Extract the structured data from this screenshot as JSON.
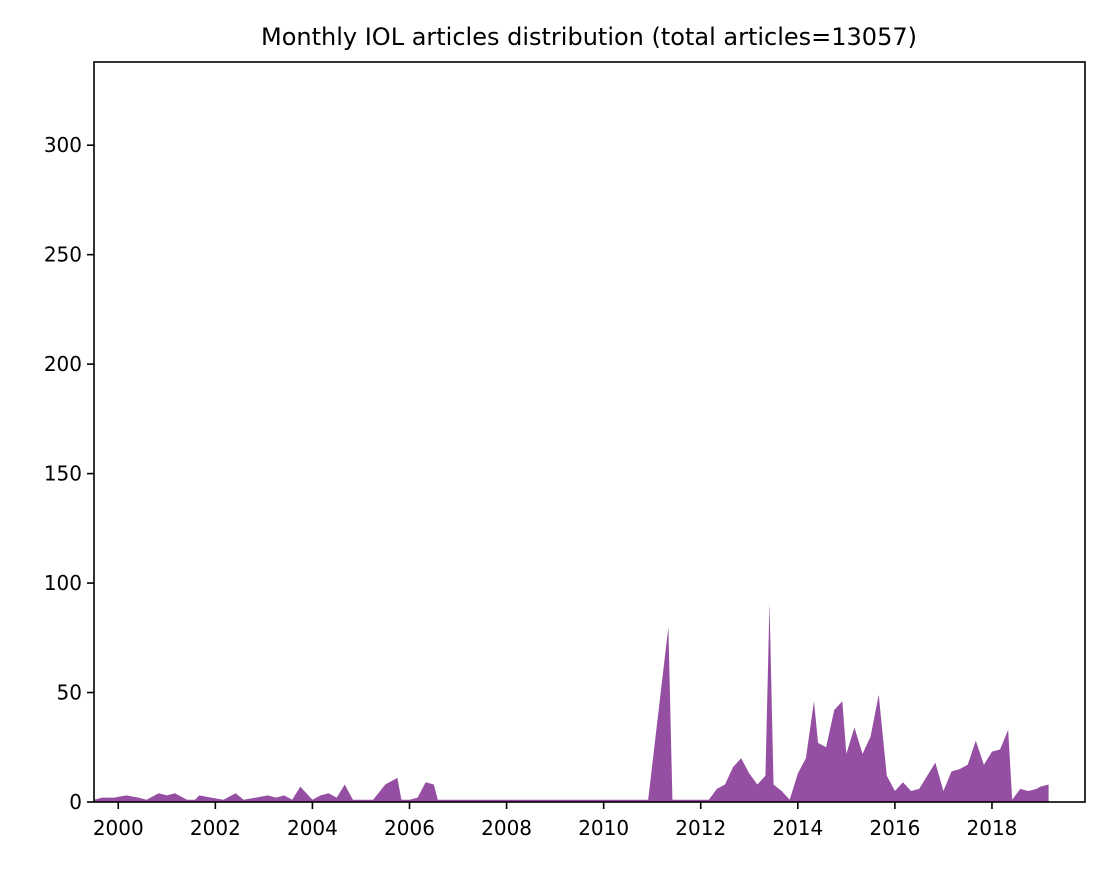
{
  "chart_data": {
    "type": "area",
    "title": "Monthly IOL articles distribution (total articles=13057)",
    "xlabel": "",
    "ylabel": "",
    "color": "#954fa2",
    "xlim": [
      "1999-07",
      "2019-12"
    ],
    "ylim": [
      0,
      338
    ],
    "x_ticks": [
      "2000",
      "2002",
      "2004",
      "2006",
      "2008",
      "2010",
      "2012",
      "2014",
      "2016",
      "2018"
    ],
    "y_ticks": [
      0,
      50,
      100,
      150,
      200,
      250,
      300
    ],
    "grid": false,
    "legend": "none",
    "points": [
      [
        "1999-07",
        1
      ],
      [
        "1999-09",
        2
      ],
      [
        "1999-12",
        2
      ],
      [
        "2000-03",
        3
      ],
      [
        "2000-06",
        2
      ],
      [
        "2000-08",
        1
      ],
      [
        "2000-11",
        4
      ],
      [
        "2001-01",
        3
      ],
      [
        "2001-03",
        4
      ],
      [
        "2001-06",
        1
      ],
      [
        "2001-08",
        1
      ],
      [
        "2001-09",
        3
      ],
      [
        "2001-12",
        2
      ],
      [
        "2002-03",
        1
      ],
      [
        "2002-06",
        4
      ],
      [
        "2002-08",
        1
      ],
      [
        "2002-11",
        2
      ],
      [
        "2003-02",
        3
      ],
      [
        "2003-04",
        2
      ],
      [
        "2003-06",
        3
      ],
      [
        "2003-08",
        1
      ],
      [
        "2003-10",
        7
      ],
      [
        "2004-01",
        1
      ],
      [
        "2004-03",
        3
      ],
      [
        "2004-05",
        4
      ],
      [
        "2004-07",
        2
      ],
      [
        "2004-09",
        8
      ],
      [
        "2004-11",
        1
      ],
      [
        "2005-01",
        1
      ],
      [
        "2005-04",
        1
      ],
      [
        "2005-07",
        8
      ],
      [
        "2005-10",
        11
      ],
      [
        "2005-11",
        1
      ],
      [
        "2006-01",
        1
      ],
      [
        "2006-03",
        2
      ],
      [
        "2006-05",
        9
      ],
      [
        "2006-07",
        8
      ],
      [
        "2006-08",
        1
      ],
      [
        "2006-12",
        1
      ],
      [
        "2007-06",
        1
      ],
      [
        "2007-12",
        1
      ],
      [
        "2008-06",
        1
      ],
      [
        "2008-12",
        1
      ],
      [
        "2009-06",
        1
      ],
      [
        "2009-12",
        1
      ],
      [
        "2010-06",
        1
      ],
      [
        "2010-12",
        1
      ],
      [
        "2011-06",
        1
      ],
      [
        "2011-12",
        1
      ],
      [
        "2012-03",
        1
      ],
      [
        "2012-05",
        6
      ],
      [
        "2012-07",
        8
      ],
      [
        "2012-09",
        16
      ],
      [
        "2012-11",
        20
      ],
      [
        "2013-01",
        13
      ],
      [
        "2013-03",
        8
      ],
      [
        "2013-05",
        12
      ],
      [
        "2013-06",
        91
      ],
      [
        "2013-07",
        8
      ],
      [
        "2013-09",
        5
      ],
      [
        "2013-11",
        1
      ],
      [
        "2014-01",
        13
      ],
      [
        "2014-03",
        20
      ],
      [
        "2014-05",
        46
      ],
      [
        "2014-06",
        27
      ],
      [
        "2014-08",
        25
      ],
      [
        "2014-10",
        42
      ],
      [
        "2014-12",
        46
      ],
      [
        "2015-01",
        22
      ],
      [
        "2015-03",
        34
      ],
      [
        "2015-05",
        22
      ],
      [
        "2015-07",
        30
      ],
      [
        "2015-09",
        49
      ],
      [
        "2015-11",
        12
      ],
      [
        "2016-01",
        5
      ],
      [
        "2016-03",
        9
      ],
      [
        "2016-05",
        5
      ],
      [
        "2016-07",
        6
      ],
      [
        "2016-09",
        12
      ],
      [
        "2016-11",
        18
      ],
      [
        "2017-01",
        5
      ],
      [
        "2017-03",
        14
      ],
      [
        "2017-05",
        15
      ],
      [
        "2017-07",
        17
      ],
      [
        "2017-09",
        28
      ],
      [
        "2017-11",
        17
      ],
      [
        "2018-01",
        23
      ],
      [
        "2018-03",
        24
      ],
      [
        "2018-05",
        33
      ],
      [
        "2018-06",
        1
      ],
      [
        "2018-08",
        6
      ],
      [
        "2018-10",
        5
      ],
      [
        "2018-12",
        6
      ],
      [
        "2019-01",
        7
      ],
      [
        "2019-03",
        8
      ],
      [
        "2011-05",
        80
      ]
    ],
    "series": []
  }
}
